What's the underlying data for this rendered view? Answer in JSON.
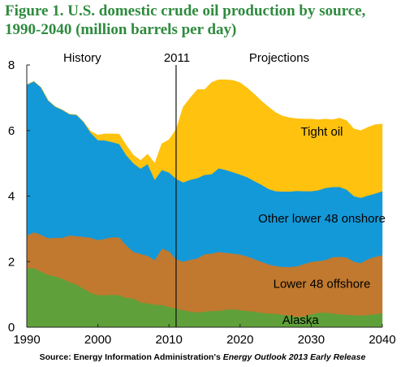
{
  "figure": {
    "title": "Figure 1. U.S. domestic crude oil production by source, 1990-2040 (million barrels per day)",
    "source_prefix": "Source: Energy Information Administration's ",
    "source_publication": "Energy Outlook 2013 Early Release"
  },
  "chart_data": {
    "type": "area",
    "stacked": true,
    "title": "Figure 1. U.S. domestic crude oil production by source, 1990-2040 (million barrels per day)",
    "xlabel": "",
    "ylabel": "",
    "xlim": [
      1990,
      2040
    ],
    "ylim": [
      0,
      8
    ],
    "xticks": [
      1990,
      2000,
      2010,
      2020,
      2030,
      2040
    ],
    "yticks": [
      0,
      2,
      4,
      6,
      8
    ],
    "grid": false,
    "divider": {
      "year": 2011,
      "label": "2011",
      "left_label": "History",
      "right_label": "Projections"
    },
    "x": [
      1990,
      1991,
      1992,
      1993,
      1994,
      1995,
      1996,
      1997,
      1998,
      1999,
      2000,
      2001,
      2002,
      2003,
      2004,
      2005,
      2006,
      2007,
      2008,
      2009,
      2010,
      2011,
      2012,
      2013,
      2014,
      2015,
      2016,
      2017,
      2018,
      2019,
      2020,
      2021,
      2022,
      2023,
      2024,
      2025,
      2026,
      2027,
      2028,
      2029,
      2030,
      2031,
      2032,
      2033,
      2034,
      2035,
      2036,
      2037,
      2038,
      2039,
      2040
    ],
    "series": [
      {
        "name": "Alaska",
        "color": "#5fa03a",
        "values": [
          1.8,
          1.8,
          1.7,
          1.6,
          1.55,
          1.48,
          1.38,
          1.3,
          1.18,
          1.05,
          0.98,
          0.98,
          0.99,
          0.98,
          0.9,
          0.88,
          0.76,
          0.73,
          0.69,
          0.68,
          0.62,
          0.58,
          0.52,
          0.48,
          0.45,
          0.48,
          0.5,
          0.5,
          0.54,
          0.55,
          0.52,
          0.5,
          0.48,
          0.44,
          0.42,
          0.41,
          0.38,
          0.36,
          0.32,
          0.33,
          0.4,
          0.44,
          0.45,
          0.42,
          0.4,
          0.38,
          0.37,
          0.36,
          0.38,
          0.4,
          0.43
        ]
      },
      {
        "name": "Lower 48 offshore",
        "color": "#c0792f",
        "values": [
          1.0,
          1.1,
          1.12,
          1.12,
          1.18,
          1.25,
          1.42,
          1.48,
          1.58,
          1.68,
          1.68,
          1.72,
          1.76,
          1.76,
          1.6,
          1.42,
          1.48,
          1.45,
          1.36,
          1.72,
          1.7,
          1.5,
          1.48,
          1.58,
          1.65,
          1.75,
          1.75,
          1.8,
          1.73,
          1.7,
          1.7,
          1.66,
          1.6,
          1.56,
          1.5,
          1.46,
          1.46,
          1.48,
          1.54,
          1.6,
          1.6,
          1.58,
          1.6,
          1.72,
          1.75,
          1.75,
          1.63,
          1.6,
          1.7,
          1.75,
          1.77
        ]
      },
      {
        "name": "Other lower 48 onshore",
        "color": "#1499d8",
        "values": [
          4.6,
          4.6,
          4.5,
          4.2,
          4.0,
          3.9,
          3.7,
          3.7,
          3.5,
          3.2,
          3.05,
          3.0,
          2.9,
          2.85,
          2.75,
          2.7,
          2.6,
          2.8,
          2.45,
          2.4,
          2.4,
          2.45,
          2.42,
          2.44,
          2.45,
          2.42,
          2.42,
          2.55,
          2.53,
          2.48,
          2.44,
          2.42,
          2.38,
          2.35,
          2.3,
          2.28,
          2.3,
          2.3,
          2.3,
          2.22,
          2.15,
          2.16,
          2.2,
          2.14,
          2.13,
          2.07,
          2.0,
          1.99,
          1.94,
          1.93,
          1.95
        ]
      },
      {
        "name": "Tight oil",
        "color": "#ffc20e",
        "values": [
          0,
          0,
          0,
          0,
          0,
          0,
          0,
          0,
          0,
          0.05,
          0.15,
          0.2,
          0.25,
          0.3,
          0.3,
          0.25,
          0.25,
          0.3,
          0.5,
          0.8,
          1.0,
          1.5,
          2.3,
          2.5,
          2.7,
          2.6,
          2.8,
          2.7,
          2.75,
          2.8,
          2.8,
          2.72,
          2.65,
          2.55,
          2.5,
          2.4,
          2.3,
          2.25,
          2.2,
          2.2,
          2.2,
          2.15,
          2.1,
          2.05,
          2.1,
          2.1,
          2.05,
          2.05,
          2.08,
          2.1,
          2.05
        ]
      }
    ],
    "labels": [
      {
        "series": "Tight oil",
        "text": "Tight oil"
      },
      {
        "series": "Other lower 48 onshore",
        "text": "Other lower 48 onshore"
      },
      {
        "series": "Lower 48 offshore",
        "text": "Lower 48 offshore"
      },
      {
        "series": "Alaska",
        "text": "Alaska"
      }
    ]
  }
}
